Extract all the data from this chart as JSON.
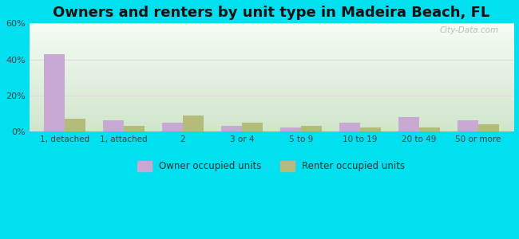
{
  "title": "Owners and renters by unit type in Madeira Beach, FL",
  "categories": [
    "1, detached",
    "1, attached",
    "2",
    "3 or 4",
    "5 to 9",
    "10 to 19",
    "20 to 49",
    "50 or more"
  ],
  "owner_values": [
    43,
    6,
    5,
    3,
    2,
    5,
    8,
    6
  ],
  "renter_values": [
    7,
    3,
    9,
    5,
    3,
    2,
    2,
    4
  ],
  "owner_color": "#c9a8d4",
  "renter_color": "#b5bc7a",
  "ylim": [
    0,
    60
  ],
  "yticks": [
    0,
    20,
    40,
    60
  ],
  "ytick_labels": [
    "0%",
    "20%",
    "40%",
    "60%"
  ],
  "title_fontsize": 13,
  "background_outer": "#00e0f0",
  "legend_owner": "Owner occupied units",
  "legend_renter": "Renter occupied units",
  "bar_width": 0.35,
  "watermark": "City-Data.com"
}
